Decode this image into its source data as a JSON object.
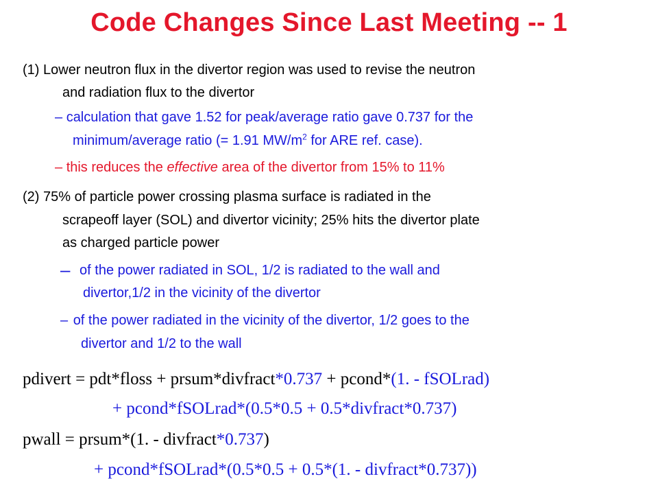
{
  "title": "Code Changes Since Last Meeting -- 1",
  "item1": {
    "line1": "(1) Lower neutron flux in the divertor region was used to revise the neutron",
    "line2": "and radiation flux to the divertor",
    "sub1_line1": "calculation that gave 1.52 for peak/average ratio gave 0.737 for the",
    "sub1_line2_a": "minimum/average ratio (= 1.91 MW/m",
    "sub1_line2_sup": "2",
    "sub1_line2_b": " for ARE ref. case).",
    "sub2_a": "this reduces the ",
    "sub2_em": "effective",
    "sub2_b": " area of the divertor from 15% to 11%"
  },
  "item2": {
    "line1": "(2) 75% of particle power crossing plasma surface is radiated in the",
    "line2": "scrapeoff layer (SOL) and divertor vicinity; 25% hits the divertor plate",
    "line3": "as charged particle power",
    "sub1_line1": "of the power radiated in SOL, 1/2 is radiated to the wall and",
    "sub1_line2": "divertor,1/2 in the vicinity of the divertor",
    "sub2_line1": "of the power radiated in the vicinity of the divertor, 1/2 goes to the",
    "sub2_line2": "divertor and 1/2 to the wall"
  },
  "dash": "–",
  "equations": {
    "pdivert_l1_a": "pdivert = pdt*floss + prsum*divfract",
    "pdivert_l1_b": "*0.737",
    "pdivert_l1_c": " + pcond*",
    "pdivert_l1_d": "(1. - fSOLrad)",
    "pdivert_l2": "+ pcond*fSOLrad*(0.5*0.5 + 0.5*divfract*0.737)",
    "pwall_l1_a": "pwall = prsum*(1. - divfract",
    "pwall_l1_b": "*0.737",
    "pwall_l1_c": ")",
    "pwall_l2": "+ pcond*fSOLrad*(0.5*0.5 + 0.5*(1. - divfract*0.737))"
  },
  "colors": {
    "title": "#e4172b",
    "body_text": "#000000",
    "blue_text": "#1a1adc",
    "red_text": "#e4172b"
  }
}
